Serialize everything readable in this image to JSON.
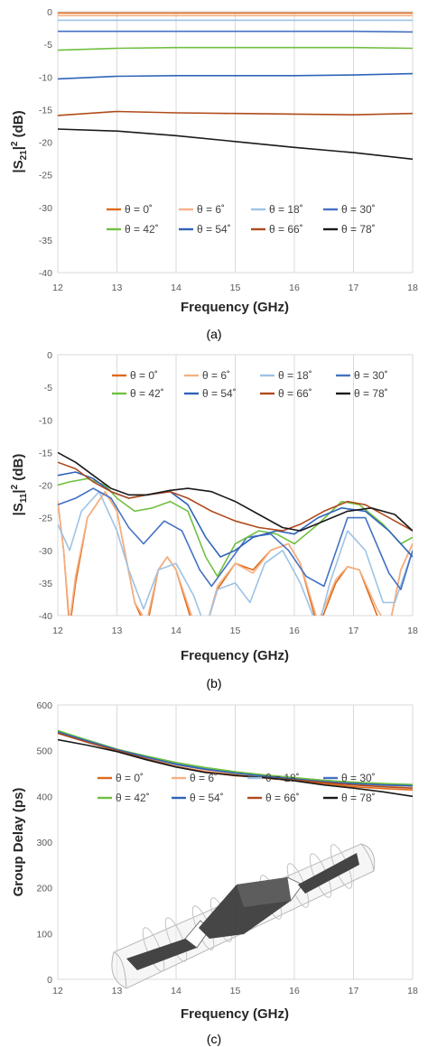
{
  "legend_labels": [
    "θ = 0˚",
    "θ = 6˚",
    "θ = 18˚",
    "θ = 30˚",
    "θ = 42˚",
    "θ = 54˚",
    "θ = 66˚",
    "θ = 78˚"
  ],
  "colors": [
    "#e06a1b",
    "#f4b183",
    "#9dc3e6",
    "#4472c4",
    "#70c040",
    "#2e64b8",
    "#b04a1c",
    "#1a1a1a"
  ],
  "chart_data": [
    {
      "type": "line",
      "caption": "(a)",
      "xlabel": "Frequency (GHz)",
      "ylabel": "|S21|2 (dB)",
      "xlim": [
        12,
        18
      ],
      "ylim": [
        -40,
        0
      ],
      "xticks": [
        12,
        13,
        14,
        15,
        16,
        17,
        18
      ],
      "yticks": [
        0,
        -5,
        -10,
        -15,
        -20,
        -25,
        -30,
        -35,
        -40
      ],
      "grid": "vertical",
      "legend": "bottom-center",
      "series": [
        {
          "name": "θ = 0˚",
          "x": [
            12,
            13,
            14,
            15,
            16,
            17,
            18
          ],
          "y": [
            -0.2,
            -0.2,
            -0.2,
            -0.2,
            -0.2,
            -0.2,
            -0.2
          ]
        },
        {
          "name": "θ = 6˚",
          "x": [
            12,
            13,
            14,
            15,
            16,
            17,
            18
          ],
          "y": [
            -0.6,
            -0.6,
            -0.6,
            -0.6,
            -0.6,
            -0.6,
            -0.6
          ]
        },
        {
          "name": "θ = 18˚",
          "x": [
            12,
            13,
            14,
            15,
            16,
            17,
            18
          ],
          "y": [
            -1.3,
            -1.3,
            -1.3,
            -1.3,
            -1.3,
            -1.3,
            -1.3
          ]
        },
        {
          "name": "θ = 30˚",
          "x": [
            12,
            13,
            14,
            15,
            16,
            17,
            18
          ],
          "y": [
            -3.0,
            -3.0,
            -3.0,
            -3.0,
            -3.0,
            -3.0,
            -3.1
          ]
        },
        {
          "name": "θ = 42˚",
          "x": [
            12,
            13,
            14,
            15,
            16,
            17,
            18
          ],
          "y": [
            -5.9,
            -5.6,
            -5.5,
            -5.5,
            -5.5,
            -5.5,
            -5.6
          ]
        },
        {
          "name": "θ = 54˚",
          "x": [
            12,
            13,
            14,
            15,
            16,
            17,
            18
          ],
          "y": [
            -10.3,
            -9.9,
            -9.8,
            -9.8,
            -9.8,
            -9.7,
            -9.5
          ]
        },
        {
          "name": "θ = 66˚",
          "x": [
            12,
            13,
            14,
            15,
            16,
            17,
            18
          ],
          "y": [
            -15.9,
            -15.3,
            -15.5,
            -15.6,
            -15.7,
            -15.8,
            -15.6
          ]
        },
        {
          "name": "θ = 78˚",
          "x": [
            12,
            13,
            14,
            15,
            16,
            17,
            18
          ],
          "y": [
            -18.0,
            -18.3,
            -19.0,
            -19.9,
            -20.8,
            -21.6,
            -22.6
          ]
        }
      ]
    },
    {
      "type": "line",
      "caption": "(b)",
      "xlabel": "Frequency (GHz)",
      "ylabel": "|S11|2 (dB)",
      "xlim": [
        12,
        18
      ],
      "ylim": [
        -40,
        0
      ],
      "xticks": [
        12,
        13,
        14,
        15,
        16,
        17,
        18
      ],
      "yticks": [
        0,
        -5,
        -10,
        -15,
        -20,
        -25,
        -30,
        -35,
        -40
      ],
      "grid": "vertical",
      "legend": "top-center",
      "series": [
        {
          "name": "θ = 0˚",
          "x": [
            12,
            12.1,
            12.2,
            12.3,
            12.5,
            12.8,
            13.0,
            13.3,
            13.5,
            13.7,
            13.85,
            14.0,
            14.3,
            14.5,
            14.7,
            15.0,
            15.3,
            15.6,
            15.9,
            16.1,
            16.4,
            16.7,
            16.9,
            17.1,
            17.4,
            17.6,
            17.8,
            18.0
          ],
          "y": [
            -22.5,
            -30,
            -42,
            -35,
            -25,
            -21,
            -24,
            -38,
            -42,
            -33,
            -31,
            -33,
            -42,
            -42,
            -36,
            -32,
            -33,
            -30,
            -29,
            -32,
            -42,
            -35,
            -32.5,
            -33,
            -40,
            -42,
            -33,
            -29
          ]
        },
        {
          "name": "θ = 6˚",
          "x": [
            12,
            12.1,
            12.2,
            12.3,
            12.5,
            12.8,
            13.0,
            13.3,
            13.5,
            13.7,
            13.85,
            14.0,
            14.3,
            14.5,
            14.7,
            15.0,
            15.3,
            15.6,
            15.9,
            16.1,
            16.4,
            16.7,
            16.9,
            17.1,
            17.4,
            17.6,
            17.8,
            18.0
          ],
          "y": [
            -22.5,
            -30,
            -41,
            -34,
            -25,
            -21,
            -24,
            -38,
            -41,
            -33,
            -31,
            -33,
            -41,
            -42,
            -35.5,
            -32,
            -33.5,
            -30,
            -29,
            -32,
            -41,
            -34.5,
            -32.5,
            -33,
            -39,
            -42,
            -33,
            -29
          ]
        },
        {
          "name": "θ = 18˚",
          "x": [
            12,
            12.2,
            12.4,
            12.7,
            13.0,
            13.2,
            13.45,
            13.7,
            14.0,
            14.3,
            14.5,
            14.7,
            15.0,
            15.25,
            15.5,
            15.8,
            16.1,
            16.4,
            16.6,
            16.9,
            17.2,
            17.5,
            17.7,
            18.0
          ],
          "y": [
            -26,
            -30,
            -24,
            -21,
            -27,
            -33,
            -39,
            -33,
            -32,
            -37,
            -42,
            -36,
            -35,
            -38,
            -32,
            -30,
            -35,
            -42,
            -35,
            -27,
            -30,
            -38,
            -38,
            -30
          ]
        },
        {
          "name": "θ = 30˚",
          "x": [
            12,
            12.3,
            12.6,
            12.9,
            13.2,
            13.45,
            13.8,
            14.1,
            14.4,
            14.6,
            14.8,
            15.2,
            15.6,
            15.9,
            16.2,
            16.5,
            16.9,
            17.2,
            17.6,
            17.8,
            18.0
          ],
          "y": [
            -23,
            -22,
            -20.5,
            -22,
            -26.5,
            -29,
            -25.5,
            -27,
            -33,
            -35.5,
            -33,
            -28,
            -27.5,
            -30,
            -34,
            -35.5,
            -25,
            -25,
            -33.5,
            -36,
            -30
          ]
        },
        {
          "name": "θ = 42˚",
          "x": [
            12,
            12.2,
            12.5,
            12.8,
            13.0,
            13.3,
            13.6,
            13.9,
            14.2,
            14.5,
            14.7,
            15.0,
            15.4,
            15.7,
            16.0,
            16.4,
            16.8,
            17.1,
            17.5,
            17.8,
            18.0
          ],
          "y": [
            -20,
            -19.5,
            -19,
            -20,
            -22,
            -24,
            -23.5,
            -22.5,
            -24,
            -31,
            -34,
            -29,
            -27,
            -27.5,
            -29,
            -26,
            -22.5,
            -23,
            -26,
            -29,
            -28
          ]
        },
        {
          "name": "θ = 54˚",
          "x": [
            12,
            12.3,
            12.6,
            12.9,
            13.2,
            13.5,
            13.9,
            14.2,
            14.5,
            14.75,
            15.0,
            15.3,
            15.7,
            16.0,
            16.4,
            16.8,
            17.2,
            17.6,
            18.0
          ],
          "y": [
            -18.5,
            -18,
            -19,
            -21,
            -22,
            -21.5,
            -21,
            -23,
            -28,
            -31,
            -30,
            -28,
            -27,
            -27.5,
            -25,
            -23.5,
            -24,
            -27,
            -31
          ]
        },
        {
          "name": "θ = 66˚",
          "x": [
            12,
            12.3,
            12.6,
            12.9,
            13.2,
            13.5,
            13.9,
            14.2,
            14.6,
            15.0,
            15.4,
            15.8,
            16.1,
            16.5,
            16.9,
            17.2,
            17.6,
            18.0
          ],
          "y": [
            -16.5,
            -17.5,
            -19.5,
            -21,
            -22,
            -21.5,
            -21,
            -22,
            -24,
            -25.5,
            -26.5,
            -27,
            -26,
            -24,
            -22.5,
            -23,
            -25,
            -27
          ]
        },
        {
          "name": "θ = 78˚",
          "x": [
            12,
            12.3,
            12.6,
            12.9,
            13.2,
            13.5,
            13.9,
            14.2,
            14.6,
            15.0,
            15.4,
            15.8,
            16.1,
            16.5,
            16.9,
            17.3,
            17.7,
            18.0
          ],
          "y": [
            -15,
            -16.5,
            -18.5,
            -20.5,
            -21.5,
            -21.5,
            -20.8,
            -20.5,
            -21,
            -22.5,
            -24.5,
            -26.5,
            -27,
            -25.5,
            -24,
            -23.5,
            -24.5,
            -27
          ]
        }
      ]
    },
    {
      "type": "line",
      "caption": "(c)",
      "xlabel": "Frequency (GHz)",
      "ylabel": "Group Delay (ps)",
      "xlim": [
        12,
        18
      ],
      "ylim": [
        0,
        600
      ],
      "xticks": [
        12,
        13,
        14,
        15,
        16,
        17,
        18
      ],
      "yticks": [
        600,
        500,
        400,
        300,
        200,
        100,
        0
      ],
      "grid": "vertical",
      "legend": "center",
      "inset": "3D model of the device",
      "series": [
        {
          "name": "θ = 0˚",
          "x": [
            12,
            12.5,
            13,
            13.5,
            14,
            14.5,
            15,
            15.5,
            16,
            16.5,
            17,
            17.5,
            18
          ],
          "y": [
            540,
            520,
            500,
            482,
            465,
            454,
            447,
            440,
            434,
            428,
            421,
            417,
            414
          ]
        },
        {
          "name": "θ = 6˚",
          "x": [
            12,
            12.5,
            13,
            13.5,
            14,
            14.5,
            15,
            15.5,
            16,
            16.5,
            17,
            17.5,
            18
          ],
          "y": [
            541,
            521,
            501,
            484,
            469,
            458,
            450,
            443,
            437,
            432,
            427,
            424,
            422
          ]
        },
        {
          "name": "θ = 18˚",
          "x": [
            12,
            12.5,
            13,
            13.5,
            14,
            14.5,
            15,
            15.5,
            16,
            16.5,
            17,
            17.5,
            18
          ],
          "y": [
            542,
            522,
            502,
            486,
            472,
            461,
            452,
            445,
            439,
            434,
            429,
            426,
            424
          ]
        },
        {
          "name": "θ = 30˚",
          "x": [
            12,
            12.5,
            13,
            13.5,
            14,
            14.5,
            15,
            15.5,
            16,
            16.5,
            17,
            17.5,
            18
          ],
          "y": [
            543,
            523,
            503,
            487,
            473,
            462,
            453,
            446,
            440,
            435,
            430,
            427,
            425
          ]
        },
        {
          "name": "θ = 42˚",
          "x": [
            12,
            12.5,
            13,
            13.5,
            14,
            14.5,
            15,
            15.5,
            16,
            16.5,
            17,
            17.5,
            18
          ],
          "y": [
            544,
            523,
            503,
            488,
            474,
            463,
            454,
            447,
            441,
            435,
            431,
            428,
            426
          ]
        },
        {
          "name": "θ = 54˚",
          "x": [
            12,
            12.5,
            13,
            13.5,
            14,
            14.5,
            15,
            15.5,
            16,
            16.5,
            17,
            17.5,
            18
          ],
          "y": [
            541,
            521,
            502,
            486,
            470,
            459,
            451,
            444,
            438,
            432,
            428,
            425,
            423
          ]
        },
        {
          "name": "θ = 66˚",
          "x": [
            12,
            12.5,
            13,
            13.5,
            14,
            14.5,
            15,
            15.5,
            16,
            16.5,
            17,
            17.5,
            18
          ],
          "y": [
            538,
            518,
            500,
            482,
            465,
            453,
            445,
            441,
            436,
            430,
            425,
            421,
            418
          ]
        },
        {
          "name": "θ = 78˚",
          "x": [
            12,
            12.5,
            13,
            13.5,
            14,
            14.5,
            15,
            15.5,
            16,
            16.5,
            17,
            17.5,
            18
          ],
          "y": [
            524,
            512,
            498,
            480,
            464,
            452,
            446,
            441,
            434,
            425,
            418,
            410,
            400
          ]
        }
      ]
    }
  ]
}
